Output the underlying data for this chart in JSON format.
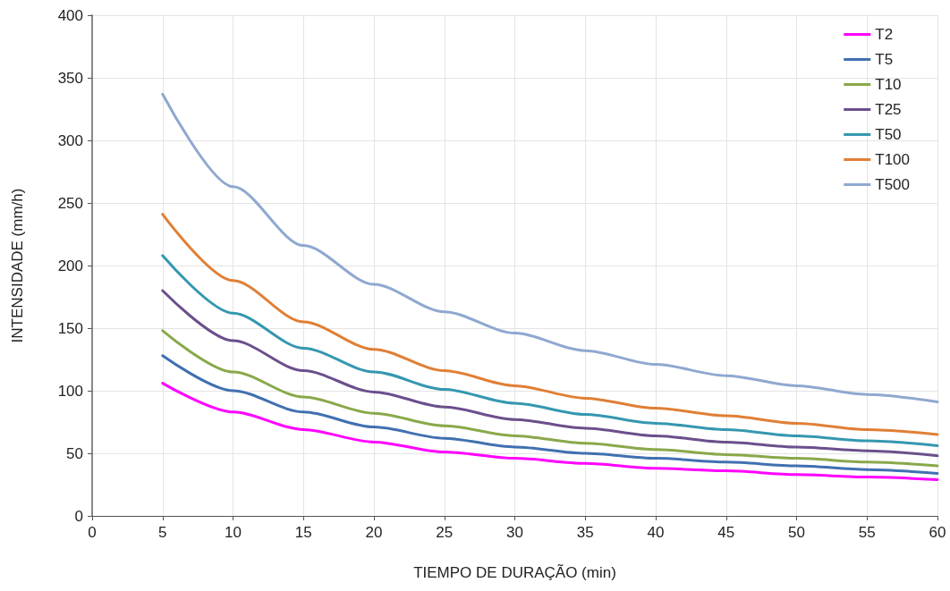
{
  "chart_data": {
    "type": "line",
    "xlabel": "TIEMPO DE DURAÇÃO (min)",
    "ylabel": "INTENSIDADE (mm/h)",
    "x": [
      5,
      10,
      15,
      20,
      25,
      30,
      35,
      40,
      45,
      50,
      55,
      60
    ],
    "series": [
      {
        "name": "T2",
        "color": "#ff00ff",
        "values": [
          106,
          83,
          69,
          59,
          51,
          46,
          42,
          38,
          36,
          33,
          31,
          29
        ]
      },
      {
        "name": "T5",
        "color": "#4070b0",
        "values": [
          128,
          100,
          83,
          71,
          62,
          55,
          50,
          46,
          43,
          40,
          37,
          34
        ]
      },
      {
        "name": "T10",
        "color": "#8aa84a",
        "values": [
          148,
          115,
          95,
          82,
          72,
          64,
          58,
          53,
          49,
          46,
          43,
          40
        ]
      },
      {
        "name": "T25",
        "color": "#6b4f8c",
        "values": [
          180,
          140,
          116,
          99,
          87,
          77,
          70,
          64,
          59,
          55,
          52,
          48
        ]
      },
      {
        "name": "T50",
        "color": "#3597b0",
        "values": [
          208,
          162,
          134,
          115,
          101,
          90,
          81,
          74,
          69,
          64,
          60,
          56
        ]
      },
      {
        "name": "T100",
        "color": "#e07f35",
        "values": [
          241,
          188,
          155,
          133,
          116,
          104,
          94,
          86,
          80,
          74,
          69,
          65
        ]
      },
      {
        "name": "T500",
        "color": "#8fa8d0",
        "values": [
          337,
          263,
          216,
          185,
          163,
          146,
          132,
          121,
          112,
          104,
          97,
          91
        ]
      }
    ],
    "xlim": [
      0,
      60
    ],
    "xticks": [
      0,
      5,
      10,
      15,
      20,
      25,
      30,
      35,
      40,
      45,
      50,
      55,
      60
    ],
    "ylim": [
      0,
      400
    ],
    "yticks": [
      0,
      50,
      100,
      150,
      200,
      250,
      300,
      350,
      400
    ],
    "grid": true,
    "legend": "top right",
    "marker": "none",
    "line_style": "solid"
  }
}
